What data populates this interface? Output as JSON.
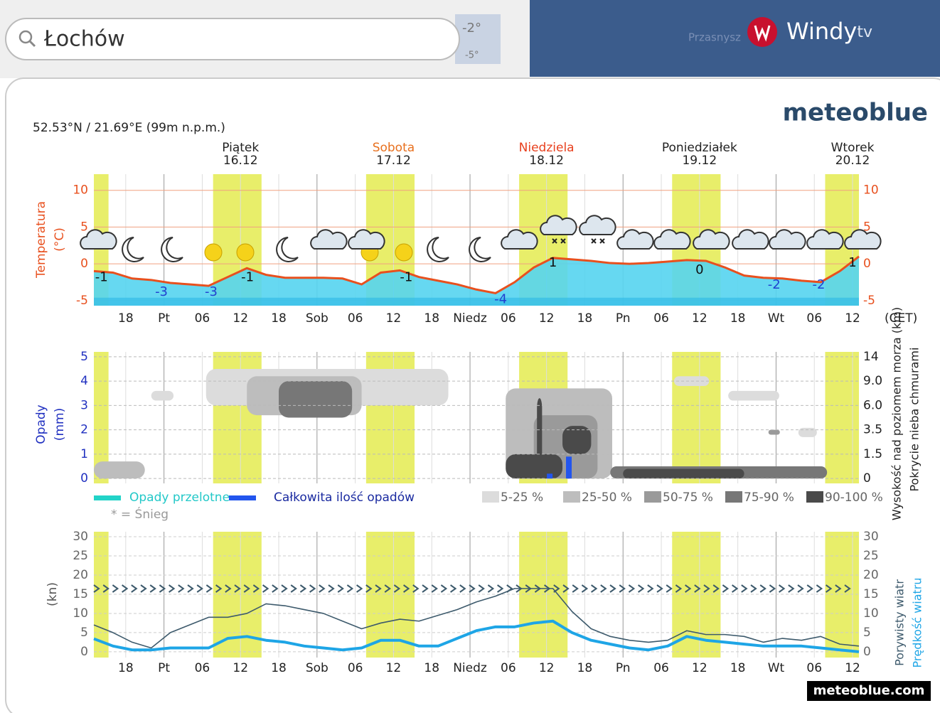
{
  "header": {
    "search": "Łochów",
    "temps": [
      "-2°",
      "-5°"
    ],
    "map_label": "Przasnysz",
    "brand": "Windy",
    "brand_suffix": "tv"
  },
  "logo": "meteoblue",
  "coords": "52.53°N / 21.69°E (99m n.p.m.)",
  "footer": "meteoblue.com",
  "chart_data": [
    {
      "type": "line",
      "ylabel": [
        "Temperatura",
        "(°C)"
      ],
      "xlabel": "(CET)",
      "color": "#e8501e",
      "fill": "#55d4f0",
      "xlim": [
        13,
        133
      ],
      "ylim": [
        -5.7,
        12.2
      ],
      "yticks": [
        -5,
        0,
        5,
        10
      ],
      "xticks": [
        {
          "value": 18,
          "label": "18"
        },
        {
          "value": 24,
          "label": "Pt"
        },
        {
          "value": 30,
          "label": "06"
        },
        {
          "value": 36,
          "label": "12"
        },
        {
          "value": 42,
          "label": "18"
        },
        {
          "value": 48,
          "label": "Sob"
        },
        {
          "value": 54,
          "label": "06"
        },
        {
          "value": 60,
          "label": "12"
        },
        {
          "value": 66,
          "label": "18"
        },
        {
          "value": 72,
          "label": "Niedz"
        },
        {
          "value": 78,
          "label": "06"
        },
        {
          "value": 84,
          "label": "12"
        },
        {
          "value": 90,
          "label": "18"
        },
        {
          "value": 96,
          "label": "Pn"
        },
        {
          "value": 102,
          "label": "06"
        },
        {
          "value": 108,
          "label": "12"
        },
        {
          "value": 114,
          "label": "18"
        },
        {
          "value": 120,
          "label": "Wt"
        },
        {
          "value": 126,
          "label": "06"
        },
        {
          "value": 132,
          "label": "12"
        }
      ],
      "days": [
        {
          "day": "Piątek",
          "date": "16.12",
          "x": 36,
          "color": "#222222"
        },
        {
          "day": "Sobota",
          "date": "17.12",
          "x": 60,
          "color": "#e8701e"
        },
        {
          "day": "Niedziela",
          "date": "18.12",
          "x": 84,
          "color": "#e8401e"
        },
        {
          "day": "Poniedziałek",
          "date": "19.12",
          "x": 108,
          "color": "#222222"
        },
        {
          "day": "Wtorek",
          "date": "20.12",
          "x": 132,
          "color": "#222222"
        }
      ],
      "daylight": [
        [
          13,
          15.3
        ],
        [
          31.7,
          39.3
        ],
        [
          55.7,
          63.3
        ],
        [
          79.7,
          87.3
        ],
        [
          103.7,
          111.3
        ],
        [
          127.7,
          133
        ]
      ],
      "x": [
        13,
        16,
        19,
        22,
        25,
        28,
        31,
        34,
        37,
        40,
        43,
        46,
        49,
        52,
        55,
        58,
        61,
        64,
        67,
        70,
        73,
        76,
        79,
        82,
        85,
        88,
        91,
        94,
        97,
        100,
        103,
        106,
        109,
        112,
        115,
        118,
        121,
        124,
        127,
        130,
        133
      ],
      "values": [
        -1,
        -1.2,
        -2,
        -2.2,
        -2.6,
        -2.8,
        -3,
        -1.8,
        -0.6,
        -1.5,
        -1.9,
        -1.9,
        -1.9,
        -2,
        -2.8,
        -1.2,
        -0.9,
        -1.8,
        -2.3,
        -2.8,
        -3.5,
        -4,
        -2.5,
        -0.5,
        0.8,
        0.6,
        0.4,
        0.1,
        0,
        0.1,
        0.3,
        0.5,
        0.4,
        -0.5,
        -1.6,
        -1.9,
        -2,
        -2.3,
        -2.5,
        -1,
        1
      ],
      "annotations": [
        {
          "x": 14.2,
          "value": -1,
          "color": "#111111"
        },
        {
          "x": 23.6,
          "value": -3,
          "color": "#2040d0"
        },
        {
          "x": 31.4,
          "value": -3,
          "color": "#2040d0"
        },
        {
          "x": 37.1,
          "value": -1,
          "color": "#111111"
        },
        {
          "x": 62,
          "value": -1,
          "color": "#111111"
        },
        {
          "x": 76.8,
          "value": -4,
          "color": "#2040d0"
        },
        {
          "x": 85,
          "value": 1,
          "color": "#111111"
        },
        {
          "x": 108,
          "value": 0,
          "color": "#111111"
        },
        {
          "x": 119.7,
          "value": -2,
          "color": "#2040d0"
        },
        {
          "x": 126.7,
          "value": -2,
          "color": "#2040d0"
        },
        {
          "x": 132,
          "value": 1,
          "color": "#111111"
        }
      ]
    },
    {
      "type": "bar",
      "ylabel": [
        "Opady",
        "(mm)"
      ],
      "y2label": [
        "Wysokość nad poziomem morza (km)",
        "Pokrycie nieba chmurami"
      ],
      "xlim": [
        13,
        133
      ],
      "ylim": [
        -0.2,
        5.2
      ],
      "yticks": [
        0,
        1,
        2,
        3,
        4,
        5
      ],
      "y2ticks": [
        0,
        1.5,
        3.5,
        {
          "value": 6,
          "label": "6.0"
        },
        {
          "value": 9,
          "label": "9.0"
        },
        14
      ],
      "x": [
        84.5,
        87.5
      ],
      "values": [
        0.2,
        0.9
      ],
      "color": "#2255ee",
      "legend": [
        {
          "label": "Opady przelotne",
          "color": "#22d3c8"
        },
        {
          "label": "Całkowita ilość opadów",
          "color": "#2255ee"
        }
      ],
      "snow_note": "* = Śnieg",
      "cloud_legend": [
        {
          "label": "5-25 %",
          "color": "#dcdcdc"
        },
        {
          "label": "25-50 %",
          "color": "#bdbdbd"
        },
        {
          "label": "50-75 %",
          "color": "#9a9a9a"
        },
        {
          "label": "75-90 %",
          "color": "#777777"
        },
        {
          "label": "90-100 %",
          "color": "#4a4a4a"
        }
      ],
      "cloud_cover": [
        {
          "x": [
            13,
            21
          ],
          "km": [
            0,
            1.05
          ],
          "level": 1
        },
        {
          "x": [
            30.6,
            68.6
          ],
          "km": [
            6,
            11.5
          ],
          "level": 0
        },
        {
          "x": [
            37,
            55
          ],
          "km": [
            5,
            10
          ],
          "level": 1
        },
        {
          "x": [
            42,
            53.5
          ],
          "km": [
            4.75,
            9
          ],
          "level": 3
        },
        {
          "x": [
            22,
            25.5
          ],
          "km": [
            6.6,
            7.8
          ],
          "level": 0
        },
        {
          "x": [
            77.6,
            94.3
          ],
          "km": [
            0,
            8.1
          ],
          "level": 1
        },
        {
          "x": [
            82,
            92
          ],
          "km": [
            0,
            5
          ],
          "level": 2
        },
        {
          "x": [
            77.6,
            86.5
          ],
          "km": [
            0,
            1.5
          ],
          "level": 4
        },
        {
          "x": [
            86.5,
            91
          ],
          "km": [
            1.5,
            3.9
          ],
          "level": 4
        },
        {
          "x": [
            82.5,
            83.3
          ],
          "km": [
            0,
            6.9
          ],
          "level": 4
        },
        {
          "x": [
            94,
            128
          ],
          "km": [
            0,
            0.75
          ],
          "level": 3
        },
        {
          "x": [
            96,
            115
          ],
          "km": [
            0,
            0.6
          ],
          "level": 4
        },
        {
          "x": [
            104,
            109.5
          ],
          "km": [
            8.4,
            10
          ],
          "level": 0
        },
        {
          "x": [
            112.5,
            120.5
          ],
          "km": [
            6.6,
            7.8
          ],
          "level": 0
        },
        {
          "x": [
            118.8,
            120.6
          ],
          "km": [
            3.1,
            3.5
          ],
          "level": 2
        },
        {
          "x": [
            123.5,
            126.4
          ],
          "km": [
            2.9,
            3.7
          ],
          "level": 0
        }
      ]
    },
    {
      "type": "line",
      "ylabel": [
        "(kn)"
      ],
      "xlim": [
        13,
        133
      ],
      "ylim": [
        -1.5,
        31.3
      ],
      "yticks": [
        0,
        5,
        10,
        15,
        20,
        25,
        30
      ],
      "xticks": [
        {
          "value": 18,
          "label": "18"
        },
        {
          "value": 24,
          "label": "Pt"
        },
        {
          "value": 30,
          "label": "06"
        },
        {
          "value": 36,
          "label": "12"
        },
        {
          "value": 42,
          "label": "18"
        },
        {
          "value": 48,
          "label": "Sob"
        },
        {
          "value": 54,
          "label": "06"
        },
        {
          "value": 60,
          "label": "12"
        },
        {
          "value": 66,
          "label": "18"
        },
        {
          "value": 72,
          "label": "Niedz"
        },
        {
          "value": 78,
          "label": "06"
        },
        {
          "value": 84,
          "label": "12"
        },
        {
          "value": 90,
          "label": "18"
        },
        {
          "value": 96,
          "label": "Pn"
        },
        {
          "value": 102,
          "label": "06"
        },
        {
          "value": 108,
          "label": "12"
        },
        {
          "value": 114,
          "label": "18"
        },
        {
          "value": 120,
          "label": "Wt"
        },
        {
          "value": 126,
          "label": "06"
        },
        {
          "value": 132,
          "label": "12"
        }
      ],
      "x": [
        13,
        16,
        19,
        22,
        25,
        28,
        31,
        34,
        37,
        40,
        43,
        46,
        49,
        52,
        55,
        58,
        61,
        64,
        67,
        70,
        73,
        76,
        79,
        82,
        85,
        88,
        91,
        94,
        97,
        100,
        103,
        106,
        109,
        112,
        115,
        118,
        121,
        124,
        127,
        130,
        133
      ],
      "series": [
        {
          "name": "Porywisty wiatr",
          "color": "#3d5a6c",
          "width": 1.6,
          "values": [
            7,
            5,
            2.5,
            1,
            5,
            7,
            9,
            9,
            10,
            12.5,
            12,
            11,
            10,
            8,
            6,
            7.5,
            8.5,
            8,
            9.5,
            11,
            13,
            14.5,
            16.5,
            16.5,
            16.5,
            10.5,
            6,
            4,
            3,
            2.5,
            3,
            5.5,
            4.5,
            4.5,
            4,
            2.5,
            3.5,
            3,
            4,
            2,
            1.5
          ]
        },
        {
          "name": "Prędkość wiatru",
          "color": "#1ea5e6",
          "width": 4,
          "values": [
            3.4,
            1.5,
            0.5,
            0.5,
            1,
            1,
            1,
            3.5,
            4,
            3,
            2.5,
            1.5,
            1,
            0.5,
            1,
            3,
            3,
            1.5,
            1.5,
            3.5,
            5.5,
            6.5,
            6.5,
            7.5,
            8,
            5,
            3,
            2,
            1,
            0.5,
            1.5,
            4,
            3,
            2.5,
            2,
            1.5,
            1.5,
            1.5,
            1,
            0.5,
            0
          ]
        }
      ]
    }
  ]
}
